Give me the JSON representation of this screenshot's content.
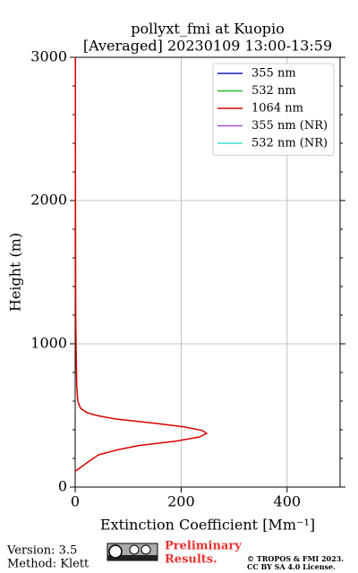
{
  "chart_data": {
    "type": "line",
    "title": "pollyxt_fmi at Kuopio",
    "subtitle": "[Averaged] 20230109 13:00-13:59",
    "x_label": "Extinction Coefficient [Mm⁻¹]",
    "y_label": "Height (m)",
    "xlim": [
      0,
      500
    ],
    "xticks": [
      0,
      200,
      400
    ],
    "ylim": [
      0,
      3000
    ],
    "yticks": [
      0,
      1000,
      2000,
      3000
    ],
    "grid": true,
    "legend": "upper right",
    "y": [
      110,
      150,
      190,
      225,
      260,
      290,
      320,
      350,
      375,
      395,
      420,
      445,
      475,
      500,
      520,
      550,
      600,
      700,
      900,
      1200,
      1600,
      2000,
      2500,
      3000
    ],
    "series": [
      {
        "name": "355 nm",
        "color": "#1a1acc",
        "values": [
          null,
          null,
          null,
          null,
          null,
          null,
          null,
          null,
          null,
          null,
          null,
          null,
          null,
          null,
          null,
          null,
          null,
          null,
          null,
          null,
          null,
          null,
          null,
          null
        ]
      },
      {
        "name": "532 nm",
        "color": "#22bb22",
        "values": [
          null,
          null,
          null,
          null,
          null,
          null,
          null,
          null,
          null,
          null,
          null,
          null,
          null,
          null,
          null,
          null,
          null,
          null,
          null,
          null,
          null,
          null,
          null,
          null
        ]
      },
      {
        "name": "1064 nm",
        "color": "#dd0000",
        "values": [
          0,
          15,
          30,
          44,
          80,
          120,
          190,
          235,
          248,
          240,
          205,
          150,
          77,
          40,
          22,
          10,
          5,
          3,
          2,
          1,
          0.8,
          0.6,
          0.5,
          0.5
        ]
      },
      {
        "name": "355 nm (NR)",
        "color": "#a050e0",
        "values": [
          null,
          null,
          null,
          null,
          null,
          null,
          null,
          null,
          null,
          null,
          null,
          null,
          null,
          null,
          null,
          null,
          null,
          null,
          null,
          null,
          null,
          null,
          null,
          null
        ]
      },
      {
        "name": "532 nm (NR)",
        "color": "#40e0d0",
        "values": [
          null,
          null,
          null,
          null,
          null,
          null,
          null,
          null,
          null,
          null,
          null,
          null,
          null,
          null,
          null,
          null,
          null,
          null,
          null,
          null,
          null,
          null,
          null,
          null
        ]
      }
    ]
  },
  "footer": {
    "version": "Version: 3.5",
    "method": "Method: Klett",
    "preliminary": [
      "Preliminary",
      "Results."
    ],
    "copyright": [
      "© TROPOS & FMI 2023.",
      "CC BY SA 4.0 License."
    ]
  }
}
